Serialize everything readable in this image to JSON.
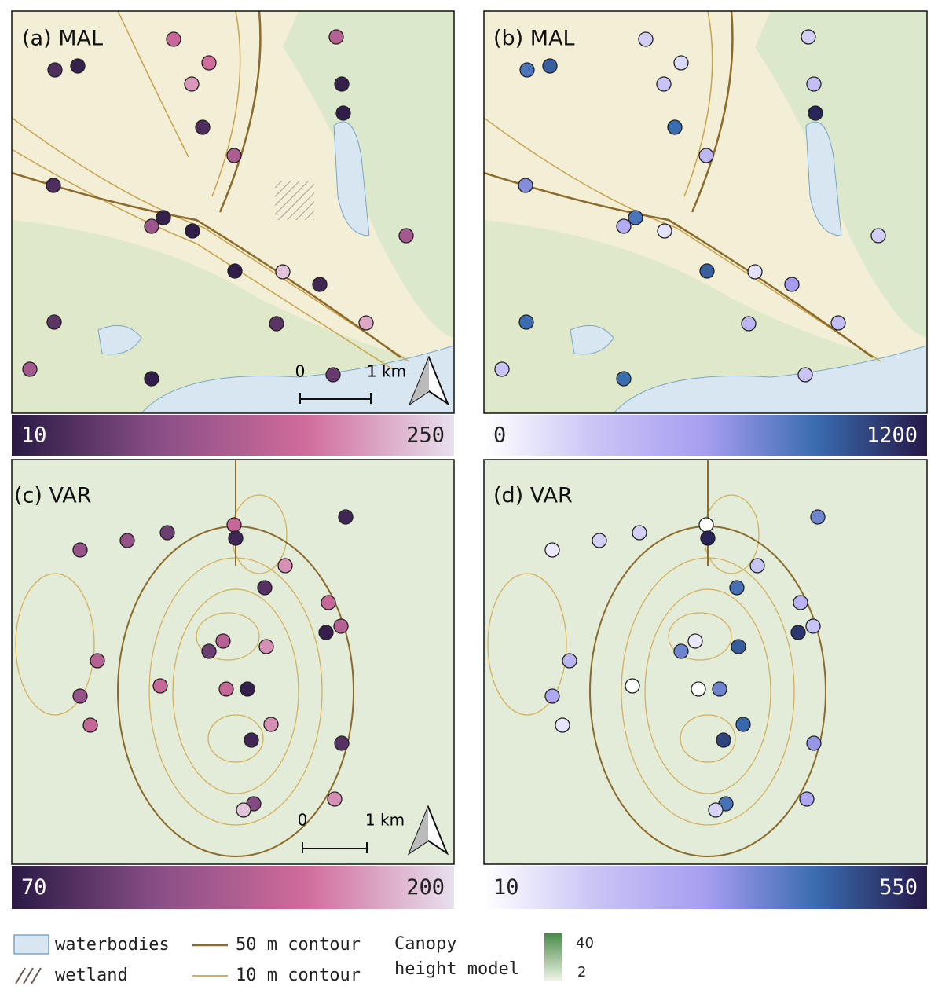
{
  "panels": [
    {
      "label": "(a) MAL",
      "colorbar": {
        "min": 10,
        "max": 250,
        "colors": [
          "#2a1a45",
          "#8a4f86",
          "#d06c9b",
          "#e8e0ee"
        ]
      },
      "values": [
        20,
        40,
        160,
        140,
        170,
        200,
        20,
        15,
        40,
        130,
        40,
        20,
        15,
        110,
        15,
        30,
        230,
        15,
        210,
        120,
        50,
        60,
        120,
        50
      ]
    },
    {
      "label": "(b) MAL",
      "colorbar": {
        "min": 0,
        "max": 1200,
        "colors": [
          "#ffffff",
          "#c9c4f5",
          "#a79df0",
          "#3a6cb0",
          "#261848"
        ]
      },
      "values": [
        950,
        850,
        250,
        250,
        200,
        300,
        350,
        1150,
        900,
        400,
        700,
        850,
        150,
        500,
        950,
        600,
        150,
        900,
        350,
        250,
        400,
        300,
        300,
        900
      ]
    },
    {
      "label": "(c) VAR",
      "colorbar": {
        "min": 70,
        "max": 200,
        "colors": [
          "#2a1a45",
          "#8a4f86",
          "#d06c9b",
          "#e8e0ee"
        ]
      },
      "values": [
        150,
        80,
        120,
        120,
        100,
        90,
        170,
        150,
        75,
        140,
        140,
        100,
        170,
        140,
        120,
        150,
        75,
        150,
        80,
        170,
        90,
        110,
        190,
        170,
        150,
        80
      ]
    },
    {
      "label": "(d) VAR",
      "colorbar": {
        "min": 10,
        "max": 550,
        "colors": [
          "#ffffff",
          "#c9c4f5",
          "#a79df0",
          "#3a6cb0",
          "#261848"
        ]
      },
      "values": [
        10,
        530,
        60,
        120,
        120,
        400,
        150,
        200,
        500,
        150,
        60,
        350,
        440,
        200,
        250,
        10,
        350,
        10,
        480,
        420,
        300,
        400,
        110,
        250,
        70,
        350
      ]
    }
  ],
  "scale_bar": {
    "start": "0",
    "end": "1 km"
  },
  "legend": {
    "waterbodies": "waterbodies",
    "wetland": "wetland",
    "contour_50": "50 m contour",
    "contour_10": "10 m contour",
    "canopy_title": [
      "Canopy",
      "height model"
    ],
    "canopy_max": "40",
    "canopy_min": "2"
  }
}
